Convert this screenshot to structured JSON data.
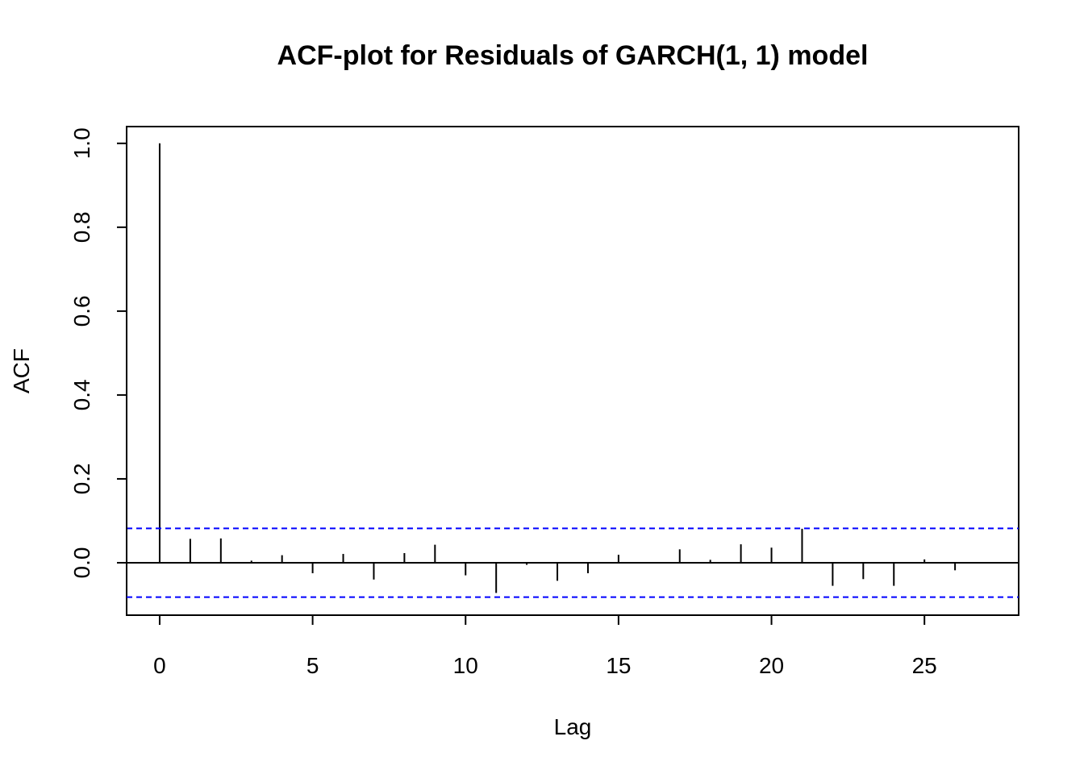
{
  "chart_data": {
    "type": "bar",
    "title": "ACF-plot for Residuals of GARCH(1, 1) model",
    "xlabel": "Lag",
    "ylabel": "ACF",
    "xlim": [
      -1.08,
      28.08
    ],
    "ylim": [
      -0.125,
      1.04
    ],
    "x_ticks": [
      0,
      5,
      10,
      15,
      20,
      25
    ],
    "x_tick_labels": [
      "0",
      "5",
      "10",
      "15",
      "20",
      "25"
    ],
    "y_ticks": [
      0.0,
      0.2,
      0.4,
      0.6,
      0.8,
      1.0
    ],
    "y_tick_labels": [
      "0.0",
      "0.2",
      "0.4",
      "0.6",
      "0.8",
      "1.0"
    ],
    "lags": [
      0,
      1,
      2,
      3,
      4,
      5,
      6,
      7,
      8,
      9,
      10,
      11,
      12,
      13,
      14,
      15,
      16,
      17,
      18,
      19,
      20,
      21,
      22,
      23,
      24,
      25,
      26
    ],
    "acf": [
      1.0,
      0.057,
      0.058,
      0.005,
      0.018,
      -0.025,
      0.021,
      -0.04,
      0.023,
      0.043,
      -0.03,
      -0.072,
      -0.005,
      -0.043,
      -0.025,
      0.019,
      0.0,
      0.032,
      0.007,
      0.044,
      0.036,
      0.081,
      -0.055,
      -0.039,
      -0.055,
      0.008,
      -0.018
    ],
    "confidence_bound": 0.082,
    "grid": false,
    "colors": {
      "bars": "#000000",
      "confidence_lines": "#0000ff",
      "zero_line": "#000000"
    }
  }
}
